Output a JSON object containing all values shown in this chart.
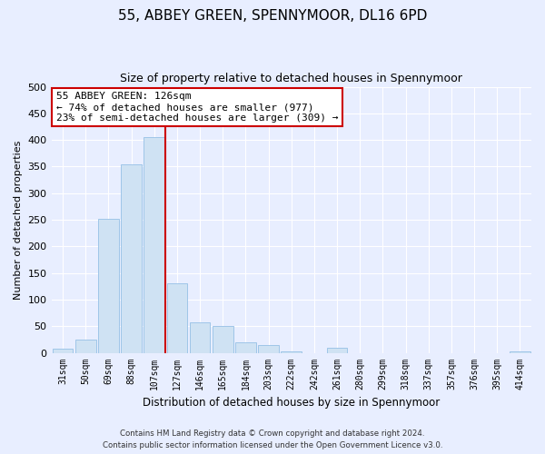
{
  "title": "55, ABBEY GREEN, SPENNYMOOR, DL16 6PD",
  "subtitle": "Size of property relative to detached houses in Spennymoor",
  "xlabel": "Distribution of detached houses by size in Spennymoor",
  "ylabel": "Number of detached properties",
  "bins": [
    "31sqm",
    "50sqm",
    "69sqm",
    "88sqm",
    "107sqm",
    "127sqm",
    "146sqm",
    "165sqm",
    "184sqm",
    "203sqm",
    "222sqm",
    "242sqm",
    "261sqm",
    "280sqm",
    "299sqm",
    "318sqm",
    "337sqm",
    "357sqm",
    "376sqm",
    "395sqm",
    "414sqm"
  ],
  "values": [
    7,
    25,
    252,
    355,
    405,
    130,
    58,
    50,
    20,
    15,
    2,
    0,
    10,
    0,
    0,
    0,
    0,
    0,
    0,
    0,
    3
  ],
  "bar_color": "#cfe2f3",
  "bar_edge_color": "#9fc5e8",
  "vline_color": "#cc0000",
  "annotation_title": "55 ABBEY GREEN: 126sqm",
  "annotation_line1": "← 74% of detached houses are smaller (977)",
  "annotation_line2": "23% of semi-detached houses are larger (309) →",
  "annotation_box_edgecolor": "#cc0000",
  "ylim": [
    0,
    500
  ],
  "yticks": [
    0,
    50,
    100,
    150,
    200,
    250,
    300,
    350,
    400,
    450,
    500
  ],
  "footnote1": "Contains HM Land Registry data © Crown copyright and database right 2024.",
  "footnote2": "Contains public sector information licensed under the Open Government Licence v3.0.",
  "bg_color": "#e8eeff",
  "plot_bg_color": "#e8eeff"
}
